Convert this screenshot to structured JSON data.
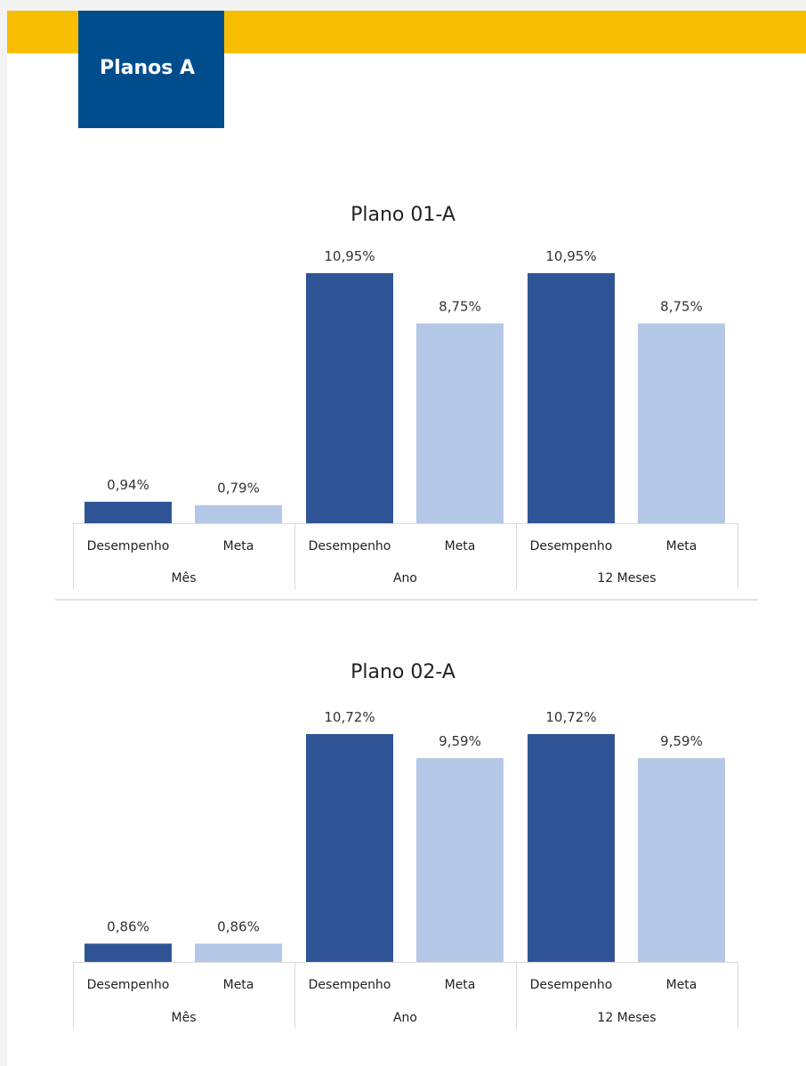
{
  "header": {
    "tag_label": "Planos A",
    "bar_color": "#f7bd00",
    "tag_color": "#004d8e"
  },
  "colors": {
    "desempenho": "#2f5597",
    "meta": "#b4c7e7"
  },
  "chart_data": [
    {
      "type": "bar",
      "title": "Plano 01-A",
      "groups": [
        "Mês",
        "Ano",
        "12 Meses"
      ],
      "categories": [
        "Desempenho",
        "Meta"
      ],
      "series": [
        {
          "group": "Mês",
          "category": "Desempenho",
          "value": 0.94,
          "label": "0,94%"
        },
        {
          "group": "Mês",
          "category": "Meta",
          "value": 0.79,
          "label": "0,79%"
        },
        {
          "group": "Ano",
          "category": "Desempenho",
          "value": 10.95,
          "label": "10,95%"
        },
        {
          "group": "Ano",
          "category": "Meta",
          "value": 8.75,
          "label": "8,75%"
        },
        {
          "group": "12 Meses",
          "category": "Desempenho",
          "value": 10.95,
          "label": "10,95%"
        },
        {
          "group": "12 Meses",
          "category": "Meta",
          "value": 8.75,
          "label": "8,75%"
        }
      ],
      "ylim": [
        0,
        10.95
      ]
    },
    {
      "type": "bar",
      "title": "Plano 02-A",
      "groups": [
        "Mês",
        "Ano",
        "12 Meses"
      ],
      "categories": [
        "Desempenho",
        "Meta"
      ],
      "series": [
        {
          "group": "Mês",
          "category": "Desempenho",
          "value": 0.86,
          "label": "0,86%"
        },
        {
          "group": "Mês",
          "category": "Meta",
          "value": 0.86,
          "label": "0,86%"
        },
        {
          "group": "Ano",
          "category": "Desempenho",
          "value": 10.72,
          "label": "10,72%"
        },
        {
          "group": "Ano",
          "category": "Meta",
          "value": 9.59,
          "label": "9,59%"
        },
        {
          "group": "12 Meses",
          "category": "Desempenho",
          "value": 10.72,
          "label": "10,72%"
        },
        {
          "group": "12 Meses",
          "category": "Meta",
          "value": 9.59,
          "label": "9,59%"
        }
      ],
      "ylim": [
        0,
        10.72
      ]
    }
  ]
}
